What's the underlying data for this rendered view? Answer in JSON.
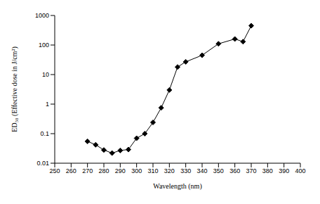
{
  "chart_data": {
    "type": "line",
    "x_label": "Wavelength (nm)",
    "y_label": "ED₅₀ (Effective dose in J/cm²)",
    "x": [
      270,
      275,
      280,
      285,
      290,
      295,
      300,
      305,
      310,
      315,
      320,
      325,
      330,
      340,
      350,
      360,
      365,
      370
    ],
    "values": [
      0.055,
      0.042,
      0.028,
      0.022,
      0.027,
      0.029,
      0.07,
      0.1,
      0.24,
      0.75,
      3.0,
      18,
      27,
      45,
      110,
      160,
      130,
      450
    ],
    "color": "#000000",
    "marker": "diamond",
    "line_style": "solid",
    "xlim": [
      250,
      400
    ],
    "xticks": [
      250,
      260,
      270,
      280,
      290,
      300,
      310,
      320,
      330,
      340,
      350,
      360,
      370,
      380,
      390,
      400
    ],
    "ylim": [
      0.01,
      1000
    ],
    "yticks": [
      0.01,
      0.1,
      1,
      10,
      100,
      1000
    ],
    "log": "y",
    "grid": false
  }
}
